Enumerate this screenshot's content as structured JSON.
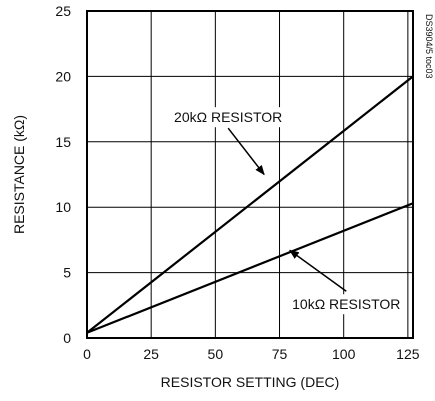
{
  "chart_data": {
    "type": "line",
    "xlabel": "RESISTOR SETTING (DEC)",
    "ylabel": "RESISTANCE (kΩ)",
    "xlim": [
      0,
      127
    ],
    "ylim": [
      0,
      25
    ],
    "x_ticks": [
      0,
      25,
      50,
      75,
      100,
      125
    ],
    "y_ticks": [
      0,
      5,
      10,
      15,
      20,
      25
    ],
    "grid": true,
    "series": [
      {
        "name": "20kΩ RESISTOR",
        "x": [
          0,
          127
        ],
        "y": [
          0.4,
          20.0
        ]
      },
      {
        "name": "10kΩ RESISTOR",
        "x": [
          0,
          127
        ],
        "y": [
          0.4,
          10.3
        ]
      }
    ],
    "annotations": [
      {
        "text": "20kΩ RESISTOR",
        "series": 0,
        "arrow_to": [
          69,
          12.5
        ],
        "text_at": [
          55,
          16.5
        ]
      },
      {
        "text": "10kΩ RESISTOR",
        "series": 1,
        "arrow_to": [
          79,
          6.7
        ],
        "text_at": [
          101,
          2.2
        ]
      }
    ],
    "side_code": "DS3904/5 toc03"
  }
}
